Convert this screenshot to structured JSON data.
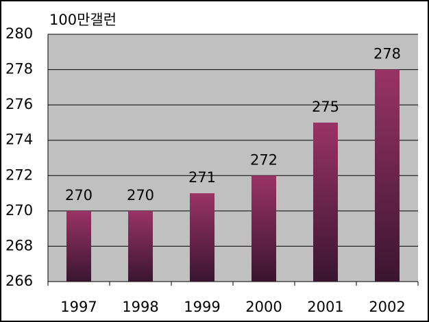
{
  "chart_data": {
    "type": "bar",
    "y_axis_label": "100만갤런",
    "categories": [
      "1997",
      "1998",
      "1999",
      "2000",
      "2001",
      "2002"
    ],
    "values": [
      270,
      270,
      271,
      272,
      275,
      278
    ],
    "color": "#993366",
    "ylim": [
      266,
      280
    ],
    "yticks": [
      266,
      268,
      270,
      272,
      274,
      276,
      278,
      280
    ],
    "grid": true
  }
}
